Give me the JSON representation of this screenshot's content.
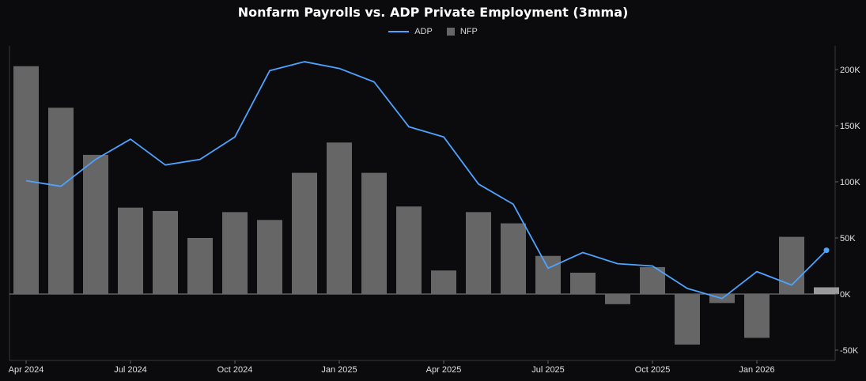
{
  "chart_data": {
    "type": "bar",
    "title": "Nonfarm Payrolls vs. ADP Private Employment (3mma)",
    "x_labels": [
      "Apr 2024",
      "Jul 2024",
      "Oct 2024",
      "Jan 2025",
      "Apr 2025",
      "Jul 2025",
      "Oct 2025",
      "Jan 2026"
    ],
    "y_ticks": [
      "-50K",
      "0K",
      "50K",
      "100K",
      "150K",
      "200K"
    ],
    "ylim": [
      -55000,
      220000
    ],
    "legend": {
      "position": "top-center"
    },
    "series": [
      {
        "name": "NFP",
        "type": "bar",
        "color": "#666666",
        "last_color": "#9a9a9a",
        "values": [
          203000,
          166000,
          124000,
          77000,
          74000,
          50000,
          73000,
          66000,
          108000,
          135000,
          108000,
          78000,
          21000,
          73000,
          63000,
          34000,
          19000,
          -9000,
          24000,
          -45000,
          -8000,
          -39000,
          51000,
          6000
        ]
      },
      {
        "name": "ADP",
        "type": "line",
        "color": "#4da3ff",
        "values": [
          101000,
          96000,
          120000,
          138000,
          115000,
          120000,
          140000,
          199000,
          207000,
          201000,
          189000,
          149000,
          140000,
          98000,
          80000,
          23000,
          37000,
          27000,
          25000,
          5000,
          -4000,
          20000,
          8000,
          39000
        ]
      }
    ],
    "grid": false
  }
}
